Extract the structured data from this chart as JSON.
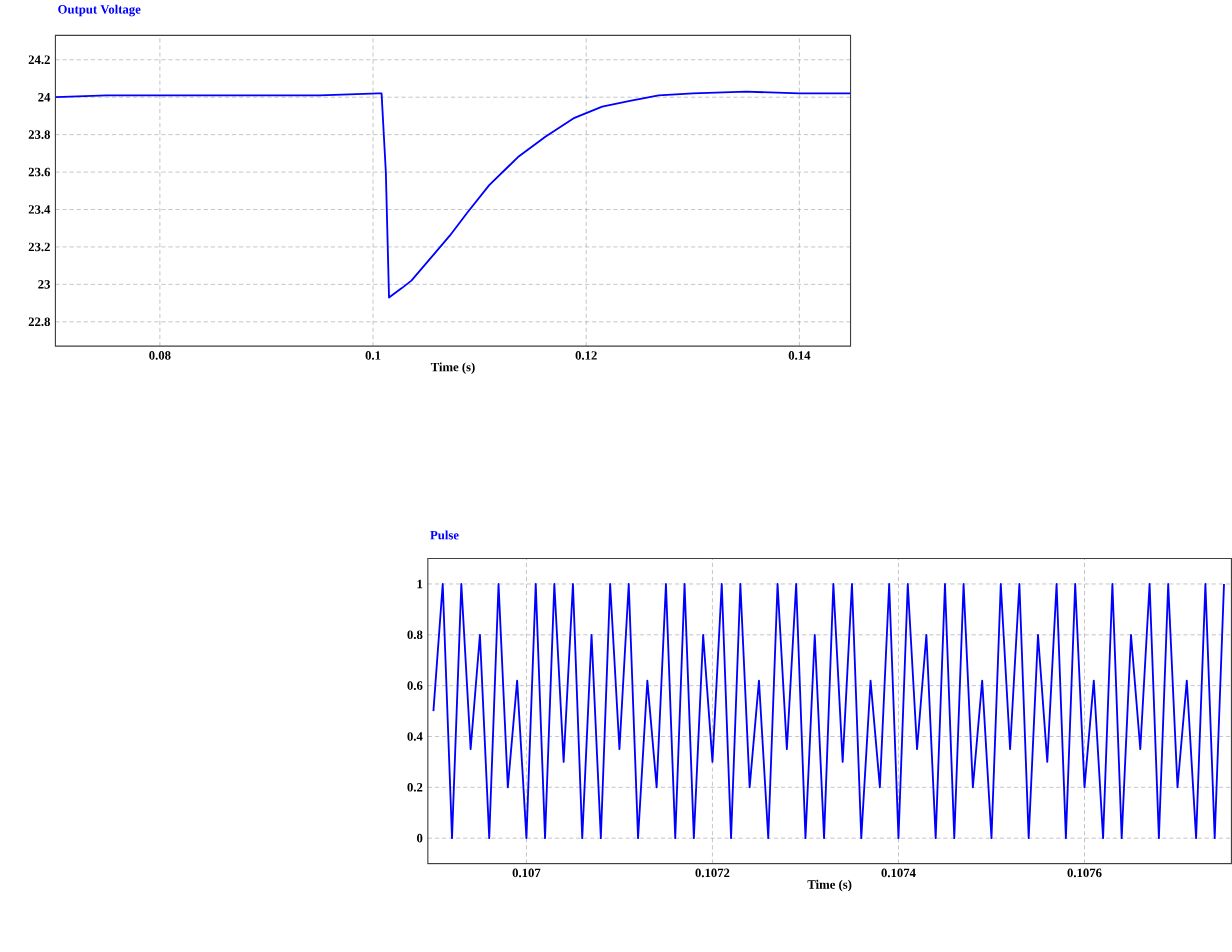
{
  "chart_data": [
    {
      "type": "line",
      "title": "Output Voltage",
      "xlabel": "Time (s)",
      "grid": true,
      "xlim": [
        0.0702,
        0.1448
      ],
      "ylim": [
        22.67,
        24.33
      ],
      "xticks": [
        0.08,
        0.1,
        0.12,
        0.14
      ],
      "yticks": [
        22.8,
        23,
        23.2,
        23.4,
        23.6,
        23.8,
        24,
        24.2
      ],
      "x": [
        0.0702,
        0.075,
        0.08,
        0.085,
        0.09,
        0.095,
        0.1005,
        0.1008,
        0.1012,
        0.1015,
        0.1027,
        0.1036,
        0.1051,
        0.1072,
        0.1088,
        0.1109,
        0.1136,
        0.1162,
        0.1189,
        0.1215,
        0.1241,
        0.1268,
        0.13,
        0.135,
        0.14,
        0.1448
      ],
      "series": [
        {
          "color": "#0000ff",
          "values": [
            24.0,
            24.01,
            24.01,
            24.01,
            24.01,
            24.01,
            24.02,
            24.02,
            23.6,
            22.93,
            22.98,
            23.02,
            23.12,
            23.26,
            23.38,
            23.53,
            23.68,
            23.79,
            23.89,
            23.95,
            23.98,
            24.01,
            24.02,
            24.03,
            24.02,
            24.02
          ]
        }
      ]
    },
    {
      "type": "line",
      "title": "Pulse",
      "xlabel": "Time (s)",
      "grid": true,
      "xlim": [
        0.106894,
        0.107758
      ],
      "ylim": [
        -0.1,
        1.1
      ],
      "xticks": [
        0.107,
        0.1072,
        0.1074,
        0.1076
      ],
      "yticks": [
        0,
        0.2,
        0.4,
        0.6,
        0.8,
        1
      ],
      "x": [
        0.1069,
        0.10691,
        0.10692,
        0.10693,
        0.10694,
        0.10695,
        0.10696,
        0.10697,
        0.10698,
        0.10699,
        0.107,
        0.10701,
        0.10702,
        0.10703,
        0.10704,
        0.10705,
        0.10706,
        0.10707,
        0.10708,
        0.10709,
        0.1071,
        0.10711,
        0.10712,
        0.10713,
        0.10714,
        0.10715,
        0.10716,
        0.10717,
        0.10718,
        0.10719,
        0.1072,
        0.10721,
        0.10722,
        0.10723,
        0.10724,
        0.10725,
        0.10726,
        0.10727,
        0.10728,
        0.10729,
        0.1073,
        0.10731,
        0.10732,
        0.10733,
        0.10734,
        0.10735,
        0.10736,
        0.10737,
        0.10738,
        0.10739,
        0.1074,
        0.10741,
        0.10742,
        0.10743,
        0.10744,
        0.10745,
        0.10746,
        0.10747,
        0.10748,
        0.10749,
        0.1075,
        0.10751,
        0.10752,
        0.10753,
        0.10754,
        0.10755,
        0.10756,
        0.10757,
        0.10758,
        0.10759,
        0.1076,
        0.10761,
        0.10762,
        0.10763,
        0.10764,
        0.10765,
        0.10766,
        0.10767,
        0.10768,
        0.10769,
        0.1077,
        0.10771,
        0.10772,
        0.10773,
        0.10774,
        0.10775
      ],
      "series": [
        {
          "color": "#0000ff",
          "values": [
            0.5,
            1,
            0,
            1,
            0.35,
            0.8,
            0,
            1,
            0.2,
            0.62,
            0,
            1,
            0,
            1,
            0.3,
            1,
            0,
            0.8,
            0,
            1,
            0.35,
            1,
            0,
            0.62,
            0.2,
            1,
            0,
            1,
            0,
            0.8,
            0.3,
            1,
            0,
            1,
            0.2,
            0.62,
            0,
            1,
            0.35,
            1,
            0,
            0.8,
            0,
            1,
            0.3,
            1,
            0,
            0.62,
            0.2,
            1,
            0,
            1,
            0.35,
            0.8,
            0,
            1,
            0,
            1,
            0.2,
            0.62,
            0,
            1,
            0.35,
            1,
            0,
            0.8,
            0.3,
            1,
            0,
            1,
            0.2,
            0.62,
            0,
            1,
            0,
            0.8,
            0.35,
            1,
            0,
            1,
            0.2,
            0.62,
            0,
            1,
            0,
            1
          ]
        }
      ]
    }
  ]
}
